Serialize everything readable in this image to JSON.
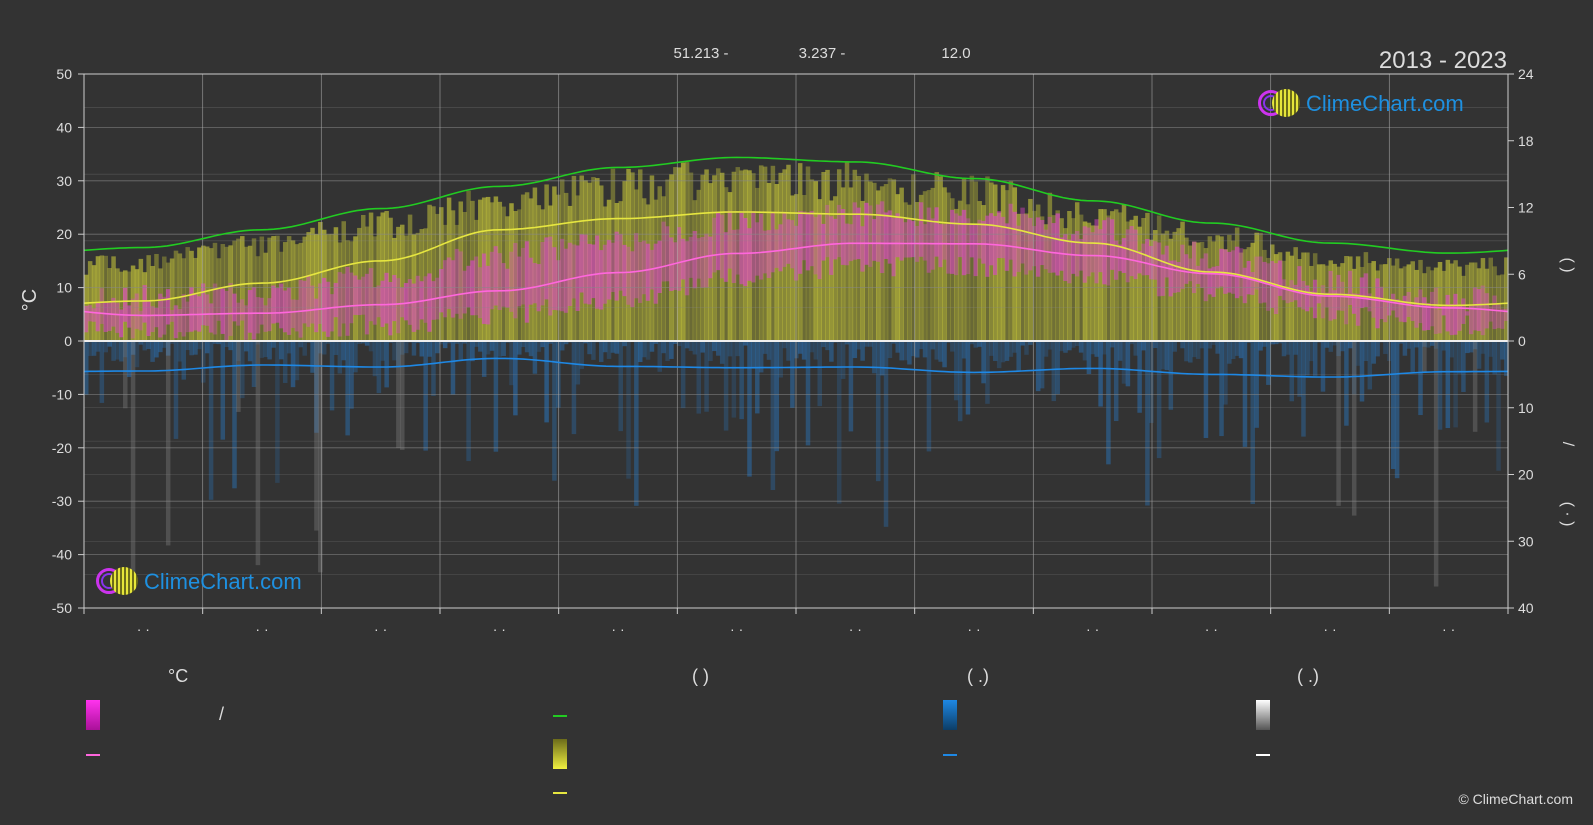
{
  "header": {
    "coords": [
      "51.213 -",
      "3.237 -",
      "12.0"
    ],
    "years": "2013 - 2023"
  },
  "axes": {
    "left_unit": "°C",
    "left_ticks": [
      50,
      40,
      30,
      20,
      10,
      0,
      -10,
      -20,
      -30,
      -40,
      -50
    ],
    "right_top_ticks": [
      24,
      18,
      12,
      6,
      0
    ],
    "right_bottom_ticks": [
      10,
      20,
      30,
      40
    ],
    "right_top_label": "(          )",
    "right_slash": "/",
    "right_bottom_label": "(   ·   )",
    "month_labels": [
      "· ·",
      "· ·",
      "· ·",
      "· ·",
      "· ·",
      "· ·",
      "· ·",
      "· ·",
      "· ·",
      "· ·",
      "· ·",
      "· ·"
    ]
  },
  "logo_text": "ClimeChart.com",
  "copyright": "© ClimeChart.com",
  "legend": {
    "col1_title": "°C",
    "col1_slash": "/",
    "col2_title": "(          )",
    "col3_title": "(    .)",
    "col4_title": "(    .)"
  },
  "colors": {
    "background": "#333333",
    "daylight": "#22cc22",
    "sunshine": "#e6e640",
    "temperature": "#ff66dd",
    "precipitation": "#1e88e5",
    "snow": "#ffffff",
    "logo": "#1e90e0"
  },
  "chart_data": {
    "type": "line",
    "x_unit": "month",
    "x": [
      0.5,
      1.5,
      2.5,
      3.5,
      4.5,
      5.5,
      6.5,
      7.5,
      8.5,
      9.5,
      10.5,
      11.5
    ],
    "ylim_left": [
      -50,
      50
    ],
    "ylim_right_top": [
      0,
      24
    ],
    "ylim_right_bottom": [
      0,
      40
    ],
    "grid": true,
    "series": [
      {
        "key": "daylight",
        "axis": "hours",
        "values": [
          8.4,
          10.0,
          11.9,
          13.9,
          15.6,
          16.5,
          16.1,
          14.6,
          12.6,
          10.6,
          8.8,
          7.9
        ]
      },
      {
        "key": "sunshine",
        "axis": "hours",
        "values": [
          3.6,
          5.2,
          7.2,
          10.0,
          11.0,
          11.6,
          11.4,
          10.5,
          8.8,
          6.2,
          4.2,
          3.2
        ]
      },
      {
        "key": "temperature",
        "axis": "celsius",
        "values": [
          4.8,
          5.2,
          6.8,
          9.4,
          12.8,
          16.4,
          18.3,
          18.2,
          16.0,
          12.6,
          8.4,
          6.2
        ]
      },
      {
        "key": "precipitation",
        "axis": "mm",
        "values": [
          4.5,
          3.6,
          3.9,
          2.6,
          3.8,
          4.0,
          3.9,
          4.7,
          4.1,
          5.0,
          5.4,
          4.6
        ]
      }
    ],
    "daily_temp_band": {
      "min": [
        2,
        2,
        3,
        5,
        8,
        12,
        14,
        14,
        12,
        9,
        5,
        3
      ],
      "max": [
        8,
        9,
        12,
        16,
        19,
        22,
        24,
        24,
        21,
        16,
        11,
        8
      ]
    },
    "daily_sun_band_hours": [
      7.2,
      8.8,
      10.8,
      12.8,
      14.2,
      15.0,
      14.8,
      13.6,
      11.6,
      9.6,
      7.6,
      6.8
    ]
  }
}
